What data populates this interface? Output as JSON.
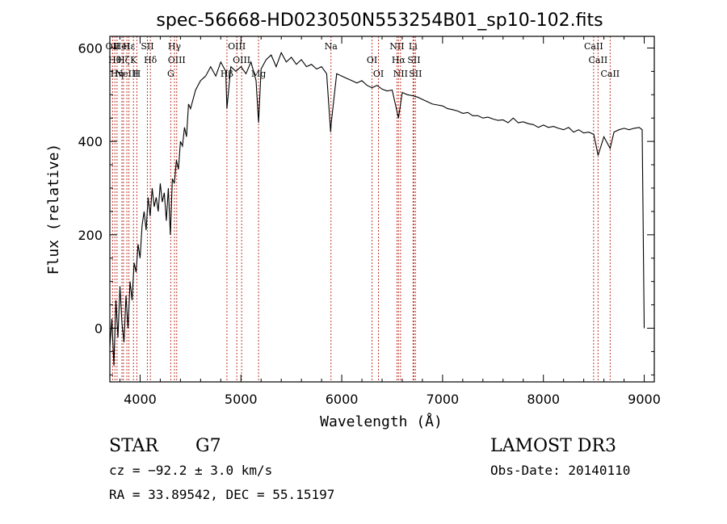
{
  "chart_data": {
    "type": "line",
    "title": "spec-56668-HD023050N553254B01_sp10-102.fits",
    "xlabel": "Wavelength (Å)",
    "ylabel": "Flux (relative)",
    "xlim": [
      3700,
      9100
    ],
    "ylim": [
      -115,
      625
    ],
    "x_ticks": [
      4000,
      5000,
      6000,
      7000,
      8000,
      9000
    ],
    "y_ticks": [
      0,
      200,
      400,
      600
    ],
    "grid": false,
    "series": [
      {
        "x": [
          3700,
          3720,
          3740,
          3760,
          3780,
          3800,
          3820,
          3840,
          3860,
          3880,
          3900,
          3920,
          3940,
          3960,
          3980,
          4000,
          4020,
          4040,
          4060,
          4080,
          4100,
          4120,
          4140,
          4160,
          4180,
          4200,
          4220,
          4240,
          4260,
          4280,
          4300,
          4320,
          4340,
          4360,
          4380,
          4400,
          4420,
          4440,
          4460,
          4480,
          4500,
          4550,
          4600,
          4650,
          4700,
          4750,
          4800,
          4850,
          4861,
          4900,
          4950,
          5000,
          5050,
          5100,
          5150,
          5175,
          5200,
          5250,
          5300,
          5350,
          5400,
          5450,
          5500,
          5550,
          5600,
          5650,
          5700,
          5750,
          5800,
          5850,
          5890,
          5896,
          5950,
          6000,
          6050,
          6100,
          6150,
          6200,
          6250,
          6300,
          6350,
          6400,
          6450,
          6500,
          6563,
          6600,
          6650,
          6700,
          6750,
          6800,
          6850,
          6900,
          6950,
          7000,
          7050,
          7100,
          7150,
          7200,
          7250,
          7300,
          7350,
          7400,
          7450,
          7500,
          7550,
          7600,
          7650,
          7700,
          7750,
          7800,
          7850,
          7900,
          7950,
          8000,
          8050,
          8100,
          8150,
          8200,
          8250,
          8300,
          8350,
          8400,
          8450,
          8500,
          8542,
          8600,
          8662,
          8700,
          8750,
          8800,
          8850,
          8900,
          8950,
          8980,
          9000
        ],
        "y": [
          -40,
          20,
          -80,
          60,
          -20,
          90,
          10,
          -30,
          70,
          0,
          100,
          60,
          140,
          120,
          180,
          150,
          220,
          250,
          210,
          280,
          240,
          300,
          260,
          280,
          250,
          310,
          270,
          290,
          230,
          300,
          200,
          320,
          310,
          360,
          340,
          400,
          390,
          430,
          410,
          480,
          470,
          510,
          530,
          540,
          560,
          540,
          570,
          550,
          470,
          560,
          550,
          560,
          545,
          570,
          530,
          440,
          555,
          575,
          585,
          560,
          590,
          570,
          580,
          565,
          575,
          560,
          565,
          555,
          560,
          545,
          420,
          440,
          545,
          540,
          535,
          530,
          525,
          530,
          520,
          515,
          520,
          512,
          508,
          510,
          450,
          505,
          500,
          498,
          495,
          490,
          485,
          480,
          478,
          476,
          470,
          468,
          465,
          460,
          462,
          455,
          455,
          450,
          452,
          448,
          445,
          446,
          440,
          450,
          440,
          442,
          438,
          436,
          430,
          435,
          430,
          432,
          428,
          425,
          430,
          420,
          425,
          418,
          420,
          415,
          370,
          410,
          385,
          420,
          425,
          428,
          425,
          428,
          430,
          425,
          0
        ]
      }
    ],
    "lines": [
      {
        "x": 3727,
        "labels": [
          "OII"
        ]
      },
      {
        "x": 3750,
        "labels": [
          "Hθ"
        ]
      },
      {
        "x": 3771,
        "labels": [
          "Hη"
        ]
      },
      {
        "x": 3820,
        "labels": [
          "HeI"
        ]
      },
      {
        "x": 3835,
        "labels": [
          "Hζ"
        ]
      },
      {
        "x": 3869,
        "labels": [
          "NeIII"
        ]
      },
      {
        "x": 3889,
        "labels": [
          "Hε"
        ]
      },
      {
        "x": 3934,
        "labels": [
          "K"
        ]
      },
      {
        "x": 3968,
        "labels": [
          "H"
        ]
      },
      {
        "x": 4072,
        "labels": [
          "SII"
        ]
      },
      {
        "x": 4102,
        "labels": [
          "Hδ"
        ]
      },
      {
        "x": 4304,
        "labels": [
          "G"
        ]
      },
      {
        "x": 4341,
        "labels": [
          "Hγ"
        ]
      },
      {
        "x": 4363,
        "labels": [
          "OIII"
        ]
      },
      {
        "x": 4861,
        "labels": [
          "Hβ"
        ]
      },
      {
        "x": 4959,
        "labels": [
          "OIII"
        ]
      },
      {
        "x": 5007,
        "labels": [
          "OIII"
        ]
      },
      {
        "x": 5175,
        "labels": [
          "Mg"
        ]
      },
      {
        "x": 5893,
        "labels": [
          "Na"
        ]
      },
      {
        "x": 6300,
        "labels": [
          "OI"
        ]
      },
      {
        "x": 6364,
        "labels": [
          "OI"
        ]
      },
      {
        "x": 6548,
        "labels": [
          "NII"
        ]
      },
      {
        "x": 6563,
        "labels": [
          "Hα"
        ]
      },
      {
        "x": 6583,
        "labels": [
          "NII"
        ]
      },
      {
        "x": 6707,
        "labels": [
          "Li"
        ]
      },
      {
        "x": 6716,
        "labels": [
          "SII"
        ]
      },
      {
        "x": 6731,
        "labels": [
          "SII"
        ]
      },
      {
        "x": 8498,
        "labels": [
          "CaII"
        ]
      },
      {
        "x": 8542,
        "labels": [
          "CaII"
        ]
      },
      {
        "x": 8662,
        "labels": [
          "CaII"
        ]
      }
    ]
  },
  "info": {
    "object_type": "STAR",
    "subclass": "G7",
    "cz": "cz = −92.2 ± 3.0 km/s",
    "coords": "RA =  33.89542, DEC =  55.15197",
    "survey": "LAMOST DR3",
    "obs_date": "Obs-Date: 20140110"
  }
}
